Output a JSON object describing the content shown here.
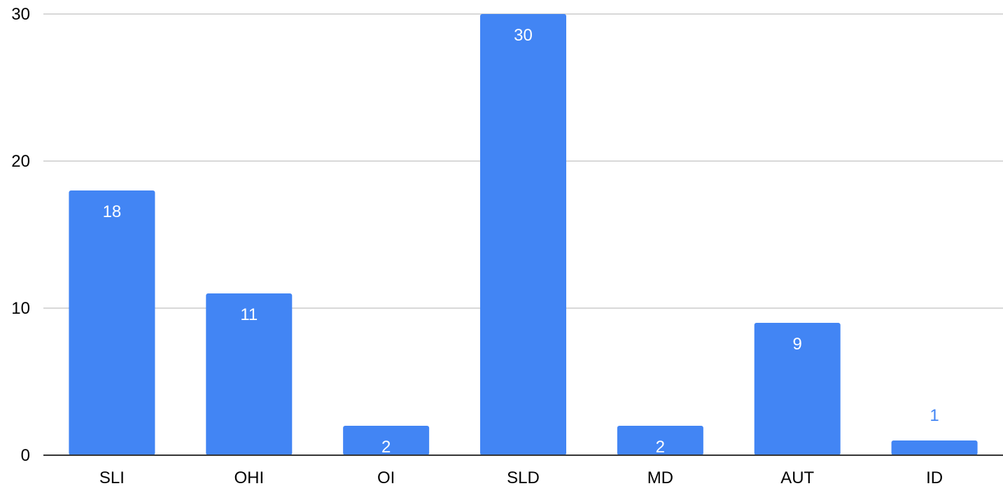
{
  "chart_data": {
    "type": "bar",
    "categories": [
      "SLI",
      "OHI",
      "OI",
      "SLD",
      "MD",
      "AUT",
      "ID"
    ],
    "values": [
      18,
      11,
      2,
      30,
      2,
      9,
      1
    ],
    "ylim": [
      0,
      30
    ],
    "yticks": [
      0,
      10,
      20,
      30
    ],
    "grid": true,
    "bar_color": "#4285F4",
    "gridline_color": "#CCCCCC",
    "axis_color": "#333333",
    "label_inside_color": "#FFFFFF",
    "label_outside_color": "#4285F4"
  }
}
